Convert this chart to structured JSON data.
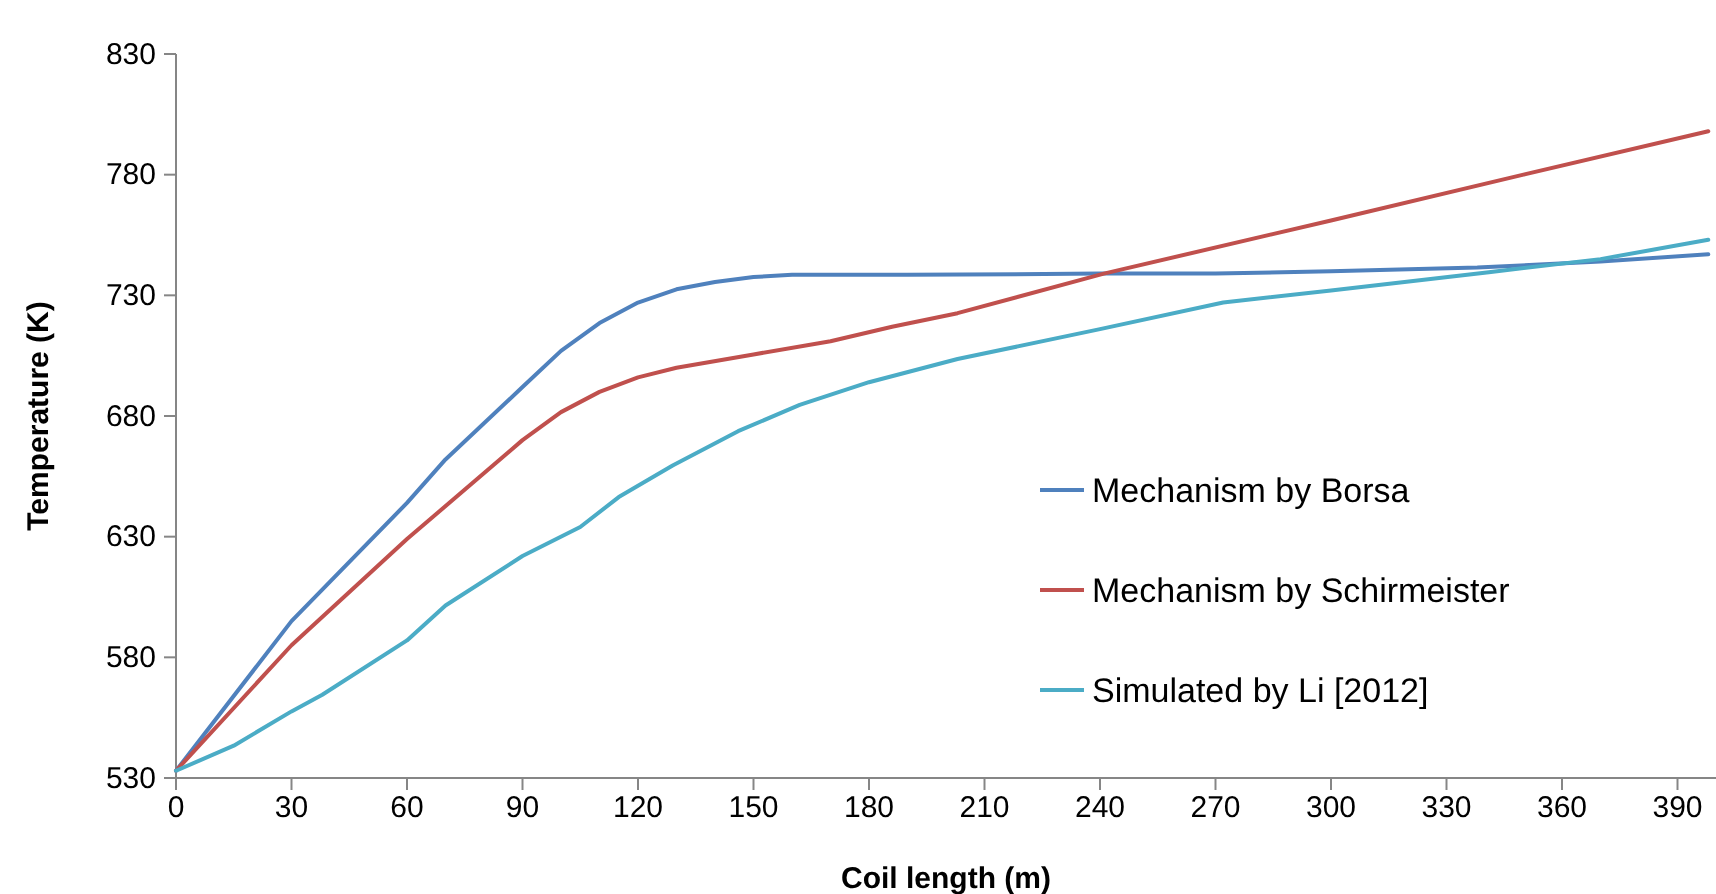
{
  "chart_data": {
    "type": "line",
    "xlabel": "Coil length (m)",
    "ylabel": "Temperature (K)",
    "xlim": [
      0,
      400
    ],
    "xticks": [
      0,
      30,
      60,
      90,
      120,
      150,
      180,
      210,
      240,
      270,
      300,
      330,
      360,
      390
    ],
    "ylim": [
      530,
      830
    ],
    "yticks": [
      530,
      580,
      630,
      680,
      730,
      780,
      830
    ],
    "grid": false,
    "legend": "right",
    "marker": "none",
    "line_style": "solid",
    "series": [
      {
        "name": "Mechanism by Borsa",
        "color": "#4f81bd",
        "x": [
          0,
          30,
          60,
          70,
          90,
          100,
          110,
          120,
          130,
          140,
          150,
          160,
          190,
          240,
          270,
          300,
          338,
          370,
          398
        ],
        "values": [
          533,
          595,
          644,
          662,
          692,
          707,
          718.5,
          727,
          732.5,
          735.5,
          737.6,
          738.5,
          738.5,
          739,
          739,
          740,
          741.5,
          744,
          747
        ]
      },
      {
        "name": "Mechanism by Schirmeister",
        "color": "#c0504d",
        "x": [
          0,
          30,
          60,
          90,
          100,
          110,
          120,
          130,
          150,
          170,
          186,
          203,
          241,
          300,
          350,
          398
        ],
        "values": [
          533,
          585,
          629,
          670,
          681.6,
          690,
          696,
          700,
          705.5,
          711,
          717,
          722.6,
          739,
          761,
          780,
          798
        ]
      },
      {
        "name": "Simulated by Li [2012]",
        "color": "#4bacc6",
        "x": [
          0,
          15,
          30,
          38,
          60,
          70,
          90,
          105,
          115,
          129,
          146,
          162,
          180,
          203,
          240,
          272,
          300,
          341,
          370,
          398
        ],
        "values": [
          533,
          543.4,
          557.6,
          564.5,
          587,
          601.5,
          622,
          634,
          646.4,
          659.5,
          673.7,
          684.6,
          694,
          703.6,
          716,
          727,
          732,
          739.6,
          745,
          753
        ]
      }
    ]
  }
}
